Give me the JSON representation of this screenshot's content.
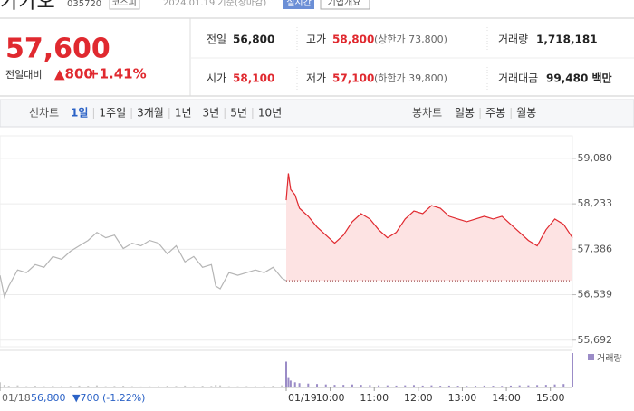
{
  "header": {
    "name": "카카오",
    "code": "035720",
    "market": "코스피",
    "date": "2024.01.19 기준(장마감)",
    "realtime": "실시간",
    "company_info": "기업개요"
  },
  "quote": {
    "price": "57,600",
    "change_label": "전일대비",
    "change": "▲800",
    "change_rate": "+1.41%"
  },
  "stats": [
    {
      "label": "전일",
      "value": "56,800"
    },
    {
      "label": "고가",
      "value": "58,800",
      "sub": "(상한가 73,800)"
    },
    {
      "label": "거래량",
      "value": "1,718,181"
    },
    {
      "label": "시가",
      "value": "58,100"
    },
    {
      "label": "저가",
      "value": "57,100",
      "sub": "(하한가 39,800)"
    },
    {
      "label": "거래대금",
      "value": "99,480 백만"
    }
  ],
  "tabs": {
    "line_label": "선차트",
    "line_periods": [
      "1일",
      "1주일",
      "3개월",
      "1년",
      "3년",
      "5년",
      "10년"
    ],
    "candle_label": "봉차트",
    "candle_periods": [
      "일봉",
      "주봉",
      "월봉"
    ]
  },
  "chart_data": {
    "type": "line",
    "xlim": [
      0,
      13
    ],
    "ylim": [
      55570,
      59500
    ],
    "yticks": [
      {
        "value": 59080,
        "label": "59,080"
      },
      {
        "value": 58233,
        "label": "58,233"
      },
      {
        "value": 57386,
        "label": "57,386"
      },
      {
        "value": 56539,
        "label": "56,539"
      },
      {
        "value": 55692,
        "label": "55,692"
      }
    ],
    "xticks": [
      {
        "value": 0,
        "label": "01/18"
      },
      {
        "value": 6.5,
        "label": "01/19"
      },
      {
        "value": 7.5,
        "label": "10:00"
      },
      {
        "value": 8.5,
        "label": "11:00"
      },
      {
        "value": 9.5,
        "label": "12:00"
      },
      {
        "value": 10.5,
        "label": "13:00"
      },
      {
        "value": 11.5,
        "label": "14:00"
      },
      {
        "value": 12.5,
        "label": "15:00"
      }
    ],
    "baseline": 56800,
    "grid": true,
    "volume_label": "거래량",
    "volume_ylim": [
      0,
      400
    ],
    "series": [
      {
        "color": "#b5b5b5",
        "x": [
          0,
          0.1,
          0.2,
          0.4,
          0.6,
          0.8,
          1.0,
          1.2,
          1.4,
          1.6,
          1.8,
          2.0,
          2.2,
          2.4,
          2.6,
          2.8,
          3.0,
          3.2,
          3.4,
          3.6,
          3.8,
          4.0,
          4.2,
          4.4,
          4.6,
          4.8,
          4.9,
          5.0,
          5.2,
          5.4,
          5.6,
          5.8,
          6.0,
          6.2,
          6.4,
          6.5
        ],
        "values": [
          56900,
          56500,
          56700,
          57000,
          56950,
          57100,
          57050,
          57250,
          57200,
          57350,
          57450,
          57550,
          57700,
          57600,
          57650,
          57400,
          57500,
          57450,
          57550,
          57500,
          57300,
          57450,
          57150,
          57250,
          57050,
          57100,
          56700,
          56650,
          56950,
          56900,
          56950,
          57000,
          56950,
          57050,
          56850,
          56800
        ],
        "volume": [
          60,
          30,
          20,
          25,
          15,
          20,
          15,
          20,
          15,
          18,
          22,
          20,
          25,
          15,
          18,
          20,
          15,
          12,
          14,
          15,
          20,
          18,
          22,
          15,
          20,
          18,
          30,
          25,
          15,
          14,
          16,
          15,
          18,
          20,
          25,
          30
        ]
      },
      {
        "color": "#e0292f",
        "x": [
          6.5,
          6.55,
          6.6,
          6.7,
          6.8,
          7.0,
          7.2,
          7.4,
          7.6,
          7.8,
          8.0,
          8.2,
          8.4,
          8.6,
          8.8,
          9.0,
          9.2,
          9.4,
          9.6,
          9.8,
          10.0,
          10.2,
          10.4,
          10.6,
          10.8,
          11.0,
          11.2,
          11.4,
          11.6,
          11.8,
          12.0,
          12.2,
          12.4,
          12.6,
          12.8,
          13.0
        ],
        "values": [
          58300,
          58800,
          58500,
          58400,
          58150,
          58000,
          57800,
          57650,
          57500,
          57650,
          57900,
          58050,
          57950,
          57750,
          57600,
          57700,
          57950,
          58100,
          58050,
          58200,
          58150,
          58000,
          57950,
          57900,
          57950,
          58000,
          57950,
          58000,
          57850,
          57700,
          57550,
          57450,
          57750,
          57950,
          57850,
          57600
        ],
        "volume": [
          300,
          120,
          80,
          60,
          50,
          45,
          40,
          35,
          30,
          30,
          35,
          30,
          28,
          25,
          25,
          22,
          25,
          28,
          22,
          25,
          20,
          22,
          20,
          18,
          20,
          22,
          20,
          18,
          22,
          25,
          25,
          28,
          30,
          35,
          40,
          400
        ]
      }
    ]
  },
  "footer": {
    "price": "56,800",
    "change": "▼700 (-1.22%)"
  }
}
